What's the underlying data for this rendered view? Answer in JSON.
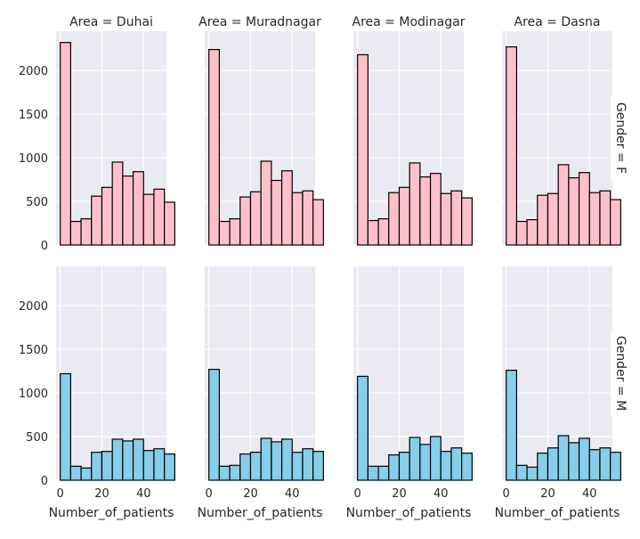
{
  "chart_data": {
    "type": "bar",
    "layout": "facet-grid-histogram",
    "x_label": "Number_of_patients",
    "x_ticks": [
      0,
      20,
      40
    ],
    "x_range": [
      -2,
      51
    ],
    "y_ticks": [
      0,
      500,
      1000,
      1500,
      2000
    ],
    "y_range": [
      0,
      2450
    ],
    "bin_edges": [
      0,
      5,
      10,
      15,
      20,
      25,
      30,
      35,
      40,
      45,
      50
    ],
    "columns": [
      "Area = Duhai",
      "Area = Muradnagar",
      "Area = Modinagar",
      "Area = Dasna"
    ],
    "rows": [
      {
        "title": "Gender = F",
        "color": "#ffc0cb"
      },
      {
        "title": "Gender = M",
        "color": "#87ceeb"
      }
    ],
    "panels": [
      [
        [
          2320,
          270,
          300,
          560,
          660,
          950,
          790,
          840,
          580,
          640,
          490
        ],
        [
          2240,
          270,
          300,
          550,
          610,
          960,
          740,
          850,
          600,
          620,
          520
        ],
        [
          2180,
          280,
          300,
          600,
          660,
          940,
          780,
          820,
          590,
          620,
          540
        ],
        [
          2270,
          270,
          290,
          570,
          590,
          920,
          770,
          830,
          600,
          620,
          520
        ]
      ],
      [
        [
          1220,
          160,
          140,
          320,
          330,
          470,
          450,
          470,
          340,
          360,
          300
        ],
        [
          1270,
          160,
          170,
          300,
          320,
          480,
          440,
          470,
          320,
          360,
          330
        ],
        [
          1190,
          160,
          160,
          290,
          320,
          490,
          410,
          500,
          330,
          370,
          310
        ],
        [
          1260,
          170,
          150,
          310,
          370,
          510,
          430,
          480,
          350,
          370,
          320
        ]
      ]
    ]
  }
}
